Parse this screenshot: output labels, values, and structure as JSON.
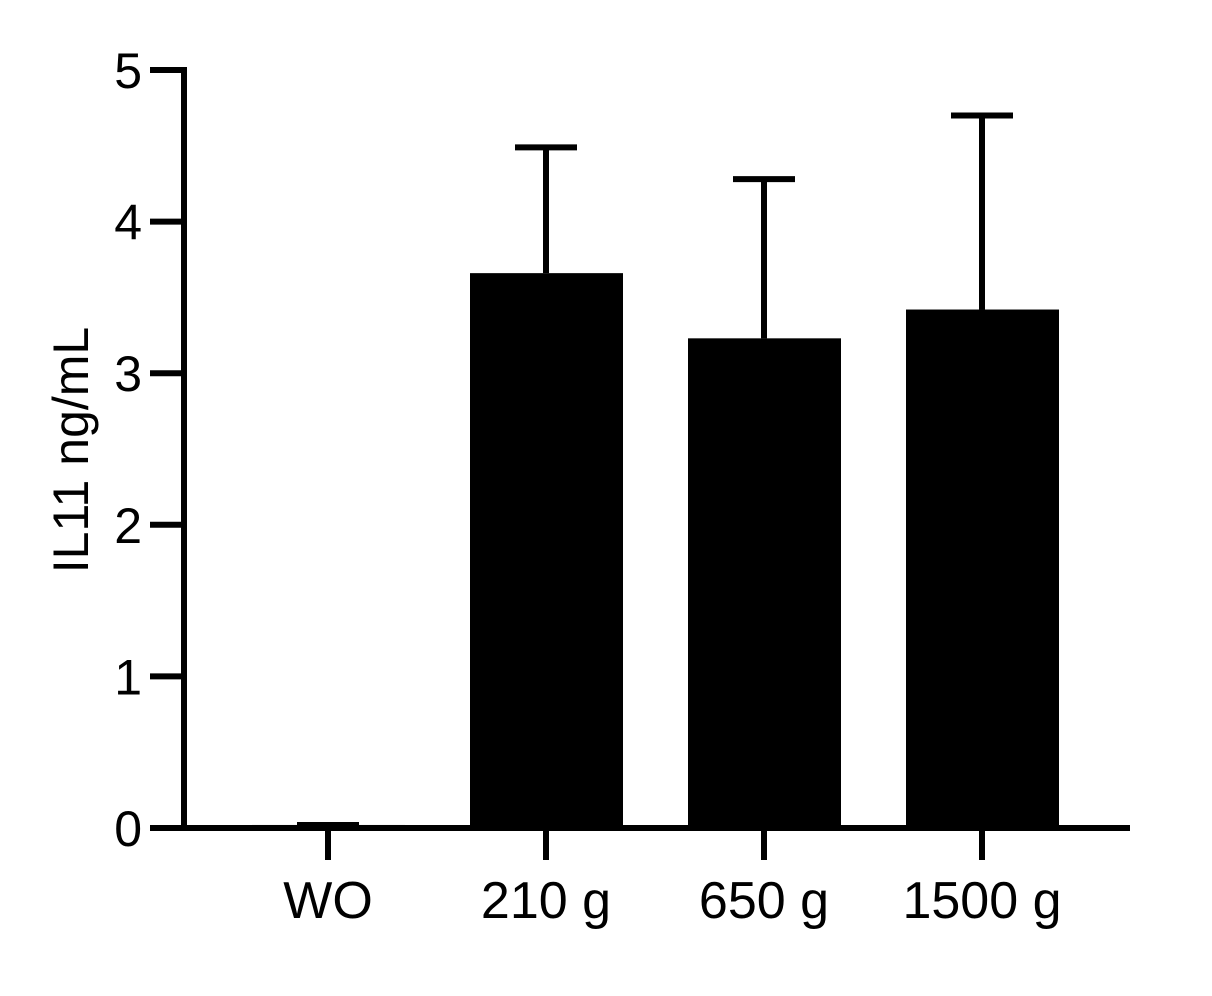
{
  "chart_data": {
    "type": "bar",
    "y_label": "IL11 ng/mL",
    "categories": [
      "WO",
      "210 g",
      "650 g",
      "1500 g"
    ],
    "values": [
      0.02,
      3.66,
      3.23,
      3.42
    ],
    "errors": [
      0,
      0.83,
      1.05,
      1.28
    ],
    "color": "#000000",
    "ylim": [
      0,
      5
    ],
    "yticks": [
      0,
      1,
      2,
      3,
      4,
      5
    ],
    "grid": false
  }
}
